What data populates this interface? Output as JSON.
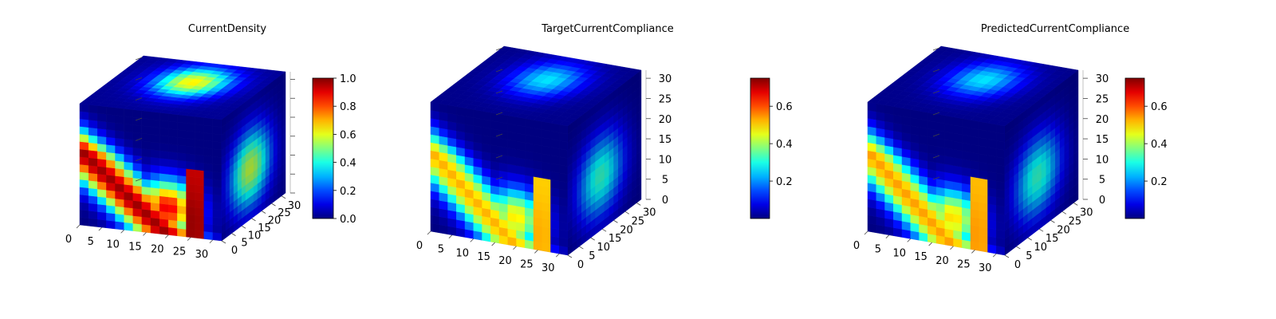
{
  "figure": {
    "panels": [
      {
        "title": "CurrentDensity"
      },
      {
        "title": "TargetCurrentCompliance"
      },
      {
        "title": "PredictedCurrentCompliance"
      }
    ]
  },
  "chart_data": [
    {
      "type": "heatmap",
      "subtype": "3d-voxel-cube",
      "title": "CurrentDensity",
      "x_ticks": [
        "0",
        "5",
        "10",
        "15",
        "20",
        "25",
        "30"
      ],
      "y_ticks": [
        "0",
        "5",
        "10",
        "15",
        "20",
        "25",
        "30"
      ],
      "z_ticks": [],
      "xlim": [
        0,
        32
      ],
      "ylim": [
        0,
        32
      ],
      "zlim": [
        0,
        32
      ],
      "colormap": "jet",
      "colorbar": {
        "min": 0.0,
        "max": 1.0,
        "ticks": [
          "0.0",
          "0.2",
          "0.4",
          "0.6",
          "0.8",
          "1.0"
        ],
        "tick_values": [
          0.0,
          0.2,
          0.4,
          0.6,
          0.8,
          1.0
        ]
      },
      "intensity": 1.0
    },
    {
      "type": "heatmap",
      "subtype": "3d-voxel-cube",
      "title": "TargetCurrentCompliance",
      "x_ticks": [
        "0",
        "5",
        "10",
        "15",
        "20",
        "25",
        "30"
      ],
      "y_ticks": [
        "0",
        "5",
        "10",
        "15",
        "20",
        "25",
        "30"
      ],
      "z_ticks": [
        "0",
        "5",
        "10",
        "15",
        "20",
        "25",
        "30"
      ],
      "xlim": [
        0,
        32
      ],
      "ylim": [
        0,
        32
      ],
      "zlim": [
        0,
        32
      ],
      "colormap": "jet",
      "colorbar": {
        "min": 0.0,
        "max": 0.75,
        "ticks": [
          "0.2",
          "0.4",
          "0.6"
        ],
        "tick_values": [
          0.2,
          0.4,
          0.6
        ]
      },
      "intensity": 0.72
    },
    {
      "type": "heatmap",
      "subtype": "3d-voxel-cube",
      "title": "PredictedCurrentCompliance",
      "x_ticks": [
        "0",
        "5",
        "10",
        "15",
        "20",
        "25",
        "30"
      ],
      "y_ticks": [
        "0",
        "5",
        "10",
        "15",
        "20",
        "25",
        "30"
      ],
      "z_ticks": [
        "0",
        "5",
        "10",
        "15",
        "20",
        "25",
        "30"
      ],
      "xlim": [
        0,
        32
      ],
      "ylim": [
        0,
        32
      ],
      "zlim": [
        0,
        32
      ],
      "colormap": "jet",
      "colorbar": {
        "min": 0.0,
        "max": 0.75,
        "ticks": [
          "0.2",
          "0.4",
          "0.6"
        ],
        "tick_values": [
          0.2,
          0.4,
          0.6
        ]
      },
      "intensity": 0.74
    }
  ]
}
